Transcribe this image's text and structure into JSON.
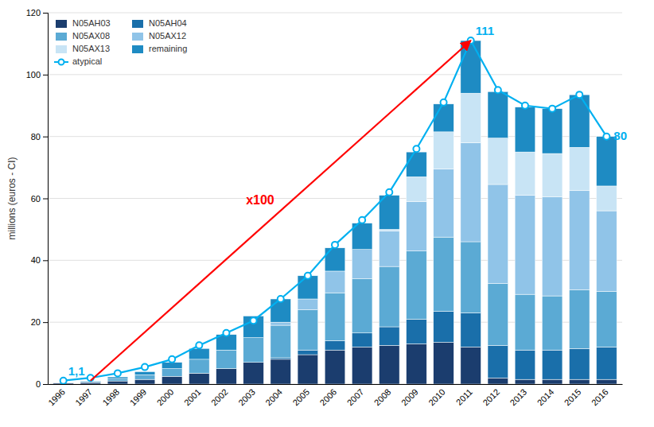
{
  "chart_data": {
    "type": "bar",
    "stacked": true,
    "categories": [
      "1996",
      "1997",
      "1998",
      "1999",
      "2000",
      "2001",
      "2002",
      "2003",
      "2004",
      "2005",
      "2006",
      "2007",
      "2008",
      "2009",
      "2010",
      "2011",
      "2012",
      "2013",
      "2014",
      "2015",
      "2016"
    ],
    "series": [
      {
        "name": "N05AH03",
        "type": "bar",
        "color": "#1b3d6e",
        "values": [
          0.3,
          0.5,
          1.0,
          1.5,
          2.5,
          3.5,
          5.0,
          7.0,
          8.0,
          9.5,
          11.0,
          12.0,
          12.5,
          13.0,
          13.5,
          12.0,
          2.0,
          1.5,
          1.5,
          1.5,
          1.5
        ]
      },
      {
        "name": "N05AH04",
        "type": "bar",
        "color": "#1a6faa",
        "values": [
          0.0,
          0.0,
          0.0,
          0.0,
          0.0,
          0.0,
          0.0,
          0.0,
          0.5,
          1.5,
          3.0,
          4.5,
          6.0,
          8.0,
          10.0,
          11.0,
          10.5,
          9.5,
          9.5,
          10.0,
          10.5
        ]
      },
      {
        "name": "N05AX08",
        "type": "bar",
        "color": "#5baad4",
        "values": [
          0.0,
          0.3,
          0.8,
          1.5,
          2.5,
          4.5,
          6.0,
          8.0,
          10.5,
          13.0,
          15.5,
          17.5,
          19.5,
          22.0,
          24.0,
          23.0,
          20.0,
          18.0,
          17.5,
          19.0,
          18.0
        ]
      },
      {
        "name": "N05AX12",
        "type": "bar",
        "color": "#90c4e8",
        "values": [
          0.0,
          0.0,
          0.0,
          0.0,
          0.0,
          0.0,
          0.0,
          0.0,
          1.0,
          3.5,
          7.0,
          9.5,
          11.5,
          16.0,
          22.0,
          32.0,
          32.0,
          32.0,
          32.0,
          32.0,
          26.0
        ]
      },
      {
        "name": "N05AX13",
        "type": "bar",
        "color": "#c8e4f5",
        "values": [
          0.0,
          0.0,
          0.0,
          0.0,
          0.0,
          0.0,
          0.0,
          0.0,
          0.0,
          0.0,
          0.0,
          0.0,
          0.5,
          8.0,
          12.0,
          16.0,
          15.0,
          14.0,
          14.0,
          14.0,
          8.0
        ]
      },
      {
        "name": "remaining",
        "type": "bar",
        "color": "#1e8bc3",
        "values": [
          0.0,
          0.2,
          0.5,
          1.0,
          2.0,
          3.5,
          5.0,
          7.0,
          7.5,
          7.5,
          7.5,
          8.5,
          11.0,
          8.0,
          9.0,
          17.0,
          15.0,
          14.5,
          14.5,
          17.0,
          16.0
        ]
      },
      {
        "name": "atypical",
        "type": "line",
        "color": "#00b0f0",
        "marker": "circle",
        "values": [
          1.1,
          2.0,
          3.5,
          5.5,
          8.0,
          12.5,
          16.5,
          20.5,
          27.5,
          35.0,
          45.0,
          53.0,
          62.0,
          76.0,
          91.0,
          111.0,
          95.0,
          90.0,
          89.0,
          93.5,
          80.0
        ]
      }
    ],
    "ylabel": "millions (euros - CI)",
    "ylim": [
      0,
      120
    ],
    "yticks": [
      0,
      20,
      40,
      60,
      80,
      100,
      120
    ],
    "grid": true,
    "legend": "upper left",
    "annotations": [
      {
        "text": "x100",
        "color": "red",
        "arrow_from": {
          "x": "1997",
          "y": 1.1
        },
        "arrow_to": {
          "x": "2011",
          "y": 111
        }
      },
      {
        "text": "1,1",
        "color": "#00b0f0",
        "x": "1996",
        "y": 1.1
      },
      {
        "text": "111",
        "color": "#00b0f0",
        "x": "2011",
        "y": 111
      },
      {
        "text": "80",
        "color": "#00b0f0",
        "x": "2016",
        "y": 80
      }
    ]
  }
}
